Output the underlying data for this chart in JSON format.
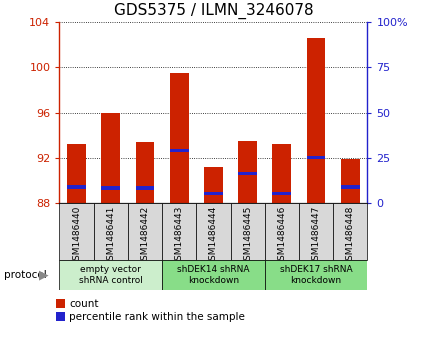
{
  "title": "GDS5375 / ILMN_3246078",
  "samples": [
    "GSM1486440",
    "GSM1486441",
    "GSM1486442",
    "GSM1486443",
    "GSM1486444",
    "GSM1486445",
    "GSM1486446",
    "GSM1486447",
    "GSM1486448"
  ],
  "count_values": [
    93.2,
    96.0,
    93.4,
    99.5,
    91.2,
    93.5,
    93.2,
    102.6,
    91.9
  ],
  "percentile_values": [
    89.3,
    89.2,
    89.2,
    92.5,
    88.7,
    90.5,
    88.7,
    91.9,
    89.3
  ],
  "ylim": [
    88,
    104
  ],
  "yticks": [
    88,
    92,
    96,
    100,
    104
  ],
  "yticks_right_labels": [
    "0",
    "25",
    "50",
    "75",
    "100%"
  ],
  "bar_color": "#cc2200",
  "percentile_color": "#2222cc",
  "bg_color": "#d8d8d8",
  "plot_bg": "#ffffff",
  "protocols": [
    {
      "label": "empty vector\nshRNA control",
      "start": 0,
      "end": 3,
      "color": "#cceecc"
    },
    {
      "label": "shDEK14 shRNA\nknockdown",
      "start": 3,
      "end": 6,
      "color": "#88dd88"
    },
    {
      "label": "shDEK17 shRNA\nknockdown",
      "start": 6,
      "end": 9,
      "color": "#88dd88"
    }
  ],
  "legend_count_label": "count",
  "legend_pct_label": "percentile rank within the sample",
  "protocol_label": "protocol",
  "title_fontsize": 11,
  "tick_fontsize": 8,
  "bar_width": 0.55
}
